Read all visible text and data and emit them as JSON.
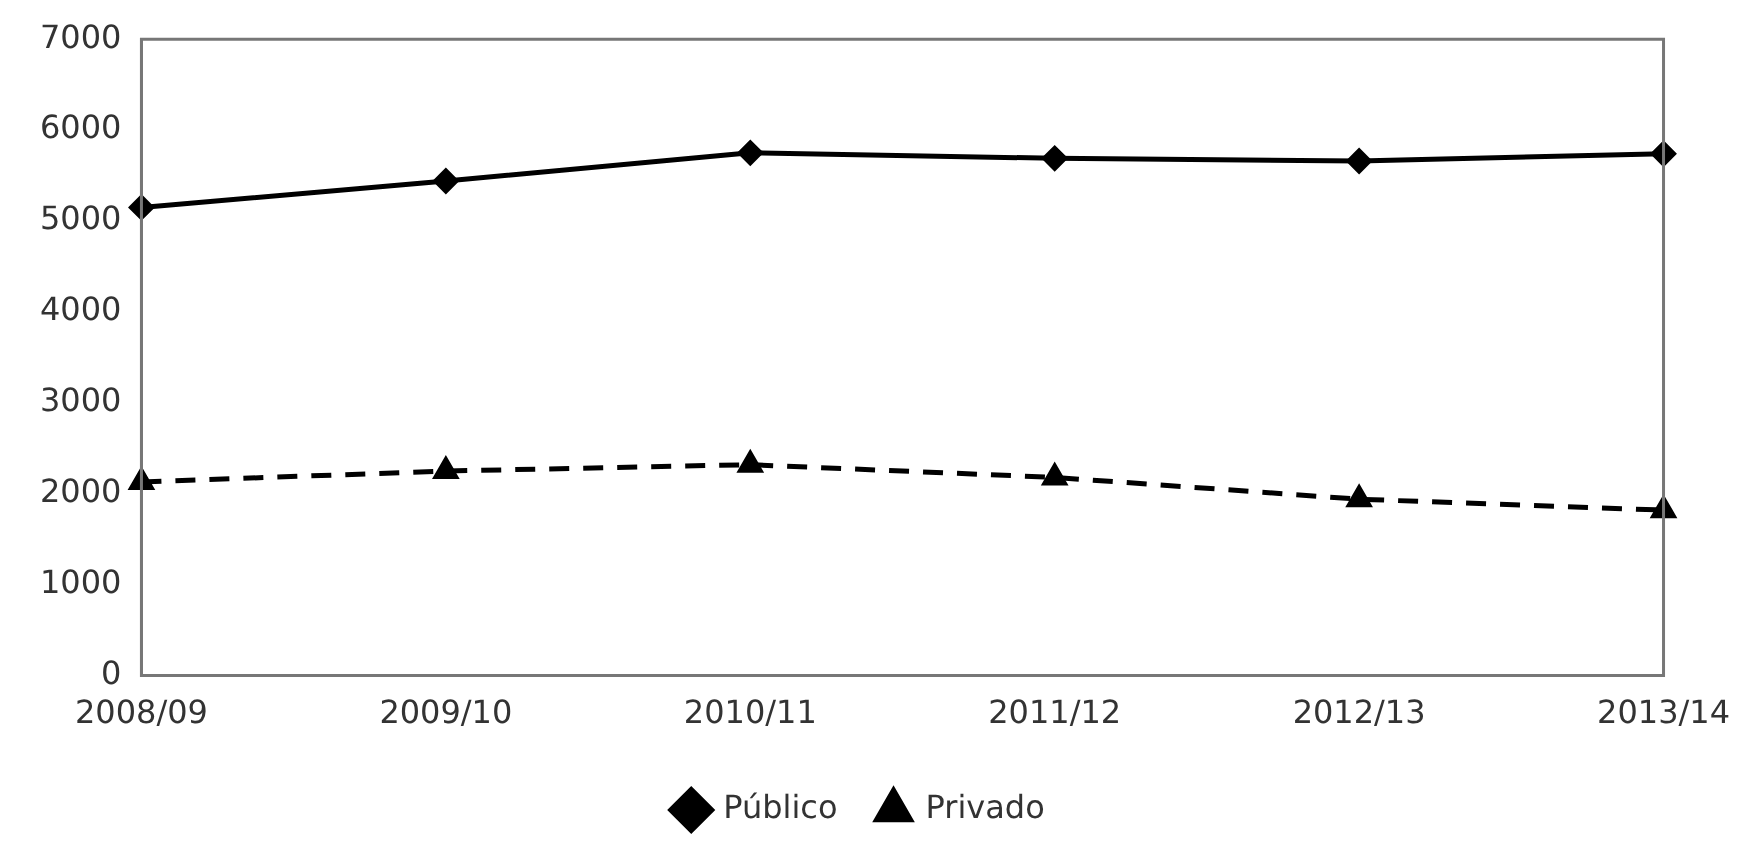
{
  "chart_data": {
    "type": "line",
    "categories": [
      "2008/09",
      "2009/10",
      "2010/11",
      "2011/12",
      "2012/13",
      "2013/14"
    ],
    "series": [
      {
        "name": "Público",
        "color": "#000000",
        "values": [
          5150,
          5440,
          5750,
          5690,
          5660,
          5740
        ],
        "marker": "diamond",
        "line_style": "solid"
      },
      {
        "name": "Privado",
        "color": "#000000",
        "values": [
          2130,
          2250,
          2320,
          2180,
          1940,
          1820
        ],
        "marker": "triangle",
        "line_style": "dashed"
      }
    ],
    "ylim": [
      0,
      7000
    ],
    "yticks": [
      0,
      1000,
      2000,
      3000,
      4000,
      5000,
      6000,
      7000
    ],
    "grid": false,
    "legend": "bottom"
  }
}
